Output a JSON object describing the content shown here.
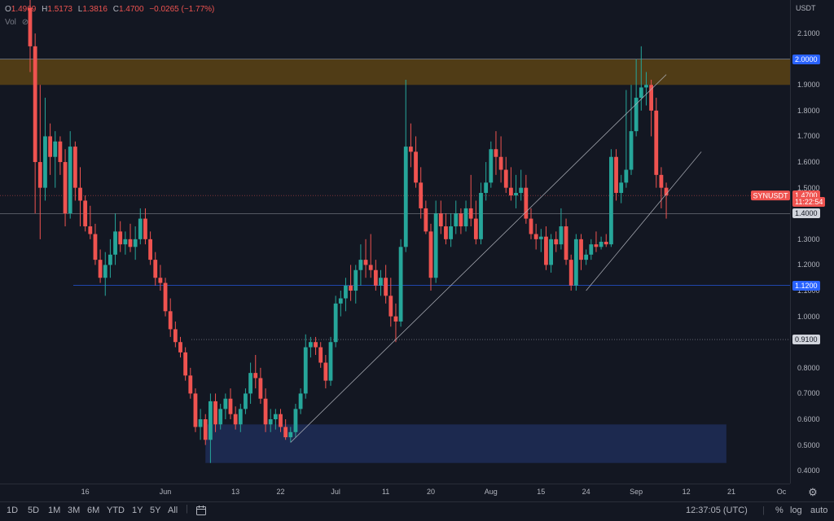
{
  "legend": {
    "open_label": "O",
    "open": "1.4969",
    "high_label": "H",
    "high": "1.5173",
    "low_label": "L",
    "low": "1.3816",
    "close_label": "C",
    "close": "1.4700",
    "change": "−0.0265 (−1.77%)",
    "volume_label": "Vol"
  },
  "price_axis": {
    "currency": "USDT",
    "ticks": [
      "2.1000",
      "1.9000",
      "1.8000",
      "1.7000",
      "1.6000",
      "1.5000",
      "1.3000",
      "1.2000",
      "1.1000",
      "1.0000",
      "0.9000",
      "0.8000",
      "0.7000",
      "0.6000",
      "0.5000",
      "0.4000"
    ],
    "tick_values": [
      2.1,
      1.9,
      1.8,
      1.7,
      1.6,
      1.5,
      1.3,
      1.2,
      1.1,
      1.0,
      0.9,
      0.8,
      0.7,
      0.6,
      0.5,
      0.4
    ],
    "tags": [
      {
        "text": "2.0000",
        "value": 2.0,
        "bg": "#2962ff",
        "fg": "#ffffff"
      },
      {
        "text": "1.4700",
        "value": 1.47,
        "bg": "#ef5350",
        "fg": "#ffffff"
      },
      {
        "text": "11:22:54",
        "value": 1.445,
        "bg": "#ef5350",
        "fg": "#ffffff"
      },
      {
        "text": "1.4000",
        "value": 1.4,
        "bg": "#d1d4dc",
        "fg": "#131722"
      },
      {
        "text": "1.1200",
        "value": 1.12,
        "bg": "#2962ff",
        "fg": "#ffffff"
      },
      {
        "text": "0.9100",
        "value": 0.91,
        "bg": "#d1d4dc",
        "fg": "#131722"
      }
    ]
  },
  "symbol_tag": {
    "text": "SYNUSDT",
    "bg": "#ef5350",
    "fg": "#ffffff"
  },
  "time_axis": {
    "labels": [
      "16",
      "Jun",
      "13",
      "22",
      "Jul",
      "11",
      "20",
      "Aug",
      "15",
      "24",
      "Sep",
      "12",
      "21",
      "Oc"
    ],
    "label_index": [
      11,
      27,
      41,
      50,
      61,
      71,
      80,
      92,
      102,
      111,
      121,
      131,
      140,
      150
    ]
  },
  "timeframes": [
    "1D",
    "5D",
    "1M",
    "3M",
    "6M",
    "YTD",
    "1Y",
    "5Y",
    "All"
  ],
  "clock": "12:37:05 (UTC)",
  "bottom_options": [
    "%",
    "log",
    "auto"
  ],
  "colors": {
    "up": "#26a69a",
    "down": "#ef5350",
    "background": "#131722",
    "resistance_zone": "#5c4314",
    "support_zone": "#1c2a52",
    "line": "#9598a1",
    "blue_line": "#2962ff"
  },
  "chart_data": {
    "type": "candlestick",
    "symbol": "SYNUSDT",
    "ylim": [
      0.35,
      2.23
    ],
    "zones": [
      {
        "from": 1.9,
        "to": 2.0,
        "color": "#5c4314"
      },
      {
        "from": 0.43,
        "to": 0.58,
        "color": "#1c2a52"
      }
    ],
    "levels": [
      1.4,
      1.12,
      0.91,
      1.47
    ],
    "ohlc": [
      [
        2.2,
        2.25,
        1.95,
        2.05
      ],
      [
        2.05,
        2.1,
        1.4,
        1.6
      ],
      [
        1.6,
        1.9,
        1.3,
        1.5
      ],
      [
        1.5,
        1.85,
        1.45,
        1.7
      ],
      [
        1.7,
        1.75,
        1.55,
        1.62
      ],
      [
        1.62,
        1.72,
        1.5,
        1.68
      ],
      [
        1.68,
        1.7,
        1.55,
        1.6
      ],
      [
        1.6,
        1.65,
        1.35,
        1.4
      ],
      [
        1.4,
        1.72,
        1.38,
        1.66
      ],
      [
        1.66,
        1.68,
        1.45,
        1.5
      ],
      [
        1.5,
        1.58,
        1.35,
        1.45
      ],
      [
        1.45,
        1.47,
        1.33,
        1.35
      ],
      [
        1.35,
        1.43,
        1.3,
        1.32
      ],
      [
        1.32,
        1.36,
        1.2,
        1.22
      ],
      [
        1.22,
        1.26,
        1.13,
        1.15
      ],
      [
        1.15,
        1.25,
        1.08,
        1.2
      ],
      [
        1.2,
        1.3,
        1.15,
        1.24
      ],
      [
        1.24,
        1.4,
        1.2,
        1.33
      ],
      [
        1.33,
        1.37,
        1.25,
        1.28
      ],
      [
        1.28,
        1.33,
        1.24,
        1.3
      ],
      [
        1.3,
        1.36,
        1.25,
        1.27
      ],
      [
        1.27,
        1.35,
        1.22,
        1.3
      ],
      [
        1.3,
        1.42,
        1.28,
        1.38
      ],
      [
        1.38,
        1.42,
        1.28,
        1.3
      ],
      [
        1.3,
        1.33,
        1.2,
        1.22
      ],
      [
        1.22,
        1.25,
        1.12,
        1.15
      ],
      [
        1.15,
        1.2,
        1.1,
        1.13
      ],
      [
        1.13,
        1.15,
        1.0,
        1.02
      ],
      [
        1.02,
        1.07,
        0.92,
        0.95
      ],
      [
        0.95,
        0.98,
        0.88,
        0.9
      ],
      [
        0.9,
        0.92,
        0.84,
        0.86
      ],
      [
        0.86,
        0.88,
        0.75,
        0.77
      ],
      [
        0.77,
        0.8,
        0.68,
        0.7
      ],
      [
        0.7,
        0.72,
        0.55,
        0.57
      ],
      [
        0.57,
        0.64,
        0.52,
        0.6
      ],
      [
        0.6,
        0.62,
        0.5,
        0.52
      ],
      [
        0.52,
        0.7,
        0.43,
        0.67
      ],
      [
        0.67,
        0.7,
        0.55,
        0.58
      ],
      [
        0.58,
        0.66,
        0.56,
        0.64
      ],
      [
        0.64,
        0.7,
        0.6,
        0.68
      ],
      [
        0.68,
        0.72,
        0.6,
        0.62
      ],
      [
        0.62,
        0.65,
        0.56,
        0.58
      ],
      [
        0.58,
        0.66,
        0.55,
        0.64
      ],
      [
        0.64,
        0.72,
        0.62,
        0.7
      ],
      [
        0.7,
        0.82,
        0.66,
        0.78
      ],
      [
        0.78,
        0.85,
        0.72,
        0.76
      ],
      [
        0.76,
        0.8,
        0.66,
        0.68
      ],
      [
        0.68,
        0.72,
        0.55,
        0.58
      ],
      [
        0.58,
        0.64,
        0.55,
        0.6
      ],
      [
        0.6,
        0.64,
        0.56,
        0.62
      ],
      [
        0.62,
        0.64,
        0.55,
        0.57
      ],
      [
        0.57,
        0.6,
        0.52,
        0.53
      ],
      [
        0.53,
        0.57,
        0.51,
        0.55
      ],
      [
        0.55,
        0.66,
        0.53,
        0.64
      ],
      [
        0.64,
        0.72,
        0.62,
        0.7
      ],
      [
        0.7,
        0.93,
        0.68,
        0.88
      ],
      [
        0.88,
        0.92,
        0.84,
        0.9
      ],
      [
        0.9,
        0.92,
        0.85,
        0.88
      ],
      [
        0.88,
        0.9,
        0.8,
        0.82
      ],
      [
        0.82,
        0.85,
        0.72,
        0.75
      ],
      [
        0.75,
        0.92,
        0.73,
        0.9
      ],
      [
        0.9,
        1.08,
        0.88,
        1.05
      ],
      [
        1.05,
        1.1,
        1.0,
        1.07
      ],
      [
        1.07,
        1.15,
        1.02,
        1.12
      ],
      [
        1.12,
        1.2,
        1.06,
        1.1
      ],
      [
        1.1,
        1.2,
        1.05,
        1.18
      ],
      [
        1.18,
        1.28,
        1.12,
        1.22
      ],
      [
        1.22,
        1.3,
        1.15,
        1.2
      ],
      [
        1.2,
        1.32,
        1.15,
        1.18
      ],
      [
        1.18,
        1.22,
        1.1,
        1.12
      ],
      [
        1.12,
        1.18,
        1.08,
        1.15
      ],
      [
        1.15,
        1.2,
        1.05,
        1.08
      ],
      [
        1.08,
        1.15,
        0.96,
        1.0
      ],
      [
        1.0,
        1.05,
        0.9,
        0.98
      ],
      [
        0.98,
        1.3,
        0.96,
        1.27
      ],
      [
        1.27,
        1.92,
        1.25,
        1.66
      ],
      [
        1.66,
        1.75,
        1.58,
        1.64
      ],
      [
        1.64,
        1.7,
        1.5,
        1.52
      ],
      [
        1.52,
        1.58,
        1.38,
        1.42
      ],
      [
        1.42,
        1.45,
        1.32,
        1.33
      ],
      [
        1.33,
        1.36,
        1.1,
        1.15
      ],
      [
        1.15,
        1.45,
        1.13,
        1.4
      ],
      [
        1.4,
        1.45,
        1.32,
        1.35
      ],
      [
        1.35,
        1.4,
        1.28,
        1.3
      ],
      [
        1.3,
        1.4,
        1.27,
        1.35
      ],
      [
        1.35,
        1.45,
        1.32,
        1.4
      ],
      [
        1.4,
        1.42,
        1.32,
        1.35
      ],
      [
        1.35,
        1.45,
        1.33,
        1.42
      ],
      [
        1.42,
        1.55,
        1.35,
        1.38
      ],
      [
        1.38,
        1.45,
        1.28,
        1.3
      ],
      [
        1.3,
        1.52,
        1.28,
        1.48
      ],
      [
        1.48,
        1.6,
        1.45,
        1.52
      ],
      [
        1.52,
        1.68,
        1.5,
        1.65
      ],
      [
        1.65,
        1.72,
        1.55,
        1.62
      ],
      [
        1.62,
        1.7,
        1.52,
        1.57
      ],
      [
        1.57,
        1.62,
        1.48,
        1.5
      ],
      [
        1.5,
        1.58,
        1.45,
        1.47
      ],
      [
        1.47,
        1.55,
        1.42,
        1.48
      ],
      [
        1.48,
        1.57,
        1.45,
        1.5
      ],
      [
        1.5,
        1.55,
        1.36,
        1.38
      ],
      [
        1.38,
        1.42,
        1.3,
        1.32
      ],
      [
        1.32,
        1.36,
        1.26,
        1.3
      ],
      [
        1.3,
        1.34,
        1.25,
        1.31
      ],
      [
        1.31,
        1.35,
        1.18,
        1.2
      ],
      [
        1.2,
        1.32,
        1.17,
        1.3
      ],
      [
        1.3,
        1.33,
        1.25,
        1.28
      ],
      [
        1.28,
        1.42,
        1.26,
        1.35
      ],
      [
        1.35,
        1.38,
        1.2,
        1.22
      ],
      [
        1.22,
        1.24,
        1.1,
        1.12
      ],
      [
        1.12,
        1.32,
        1.1,
        1.3
      ],
      [
        1.3,
        1.32,
        1.18,
        1.22
      ],
      [
        1.22,
        1.26,
        1.2,
        1.24
      ],
      [
        1.24,
        1.3,
        1.22,
        1.28
      ],
      [
        1.28,
        1.33,
        1.25,
        1.27
      ],
      [
        1.27,
        1.31,
        1.26,
        1.29
      ],
      [
        1.29,
        1.32,
        1.27,
        1.28
      ],
      [
        1.28,
        1.65,
        1.27,
        1.62
      ],
      [
        1.62,
        1.65,
        1.45,
        1.48
      ],
      [
        1.48,
        1.55,
        1.44,
        1.52
      ],
      [
        1.52,
        1.88,
        1.5,
        1.57
      ],
      [
        1.57,
        1.9,
        1.55,
        1.72
      ],
      [
        1.72,
        2.0,
        1.7,
        1.85
      ],
      [
        1.85,
        2.05,
        1.8,
        1.89
      ],
      [
        1.89,
        1.95,
        1.82,
        1.9
      ],
      [
        1.9,
        1.92,
        1.7,
        1.8
      ],
      [
        1.8,
        1.85,
        1.5,
        1.55
      ],
      [
        1.55,
        1.58,
        1.42,
        1.5
      ],
      [
        1.5,
        1.52,
        1.38,
        1.47
      ]
    ],
    "trendlines": [
      {
        "from": [
          52,
          0.51
        ],
        "to": [
          127,
          1.94
        ]
      },
      {
        "from": [
          111,
          1.1
        ],
        "to": [
          134,
          1.64
        ]
      }
    ]
  }
}
